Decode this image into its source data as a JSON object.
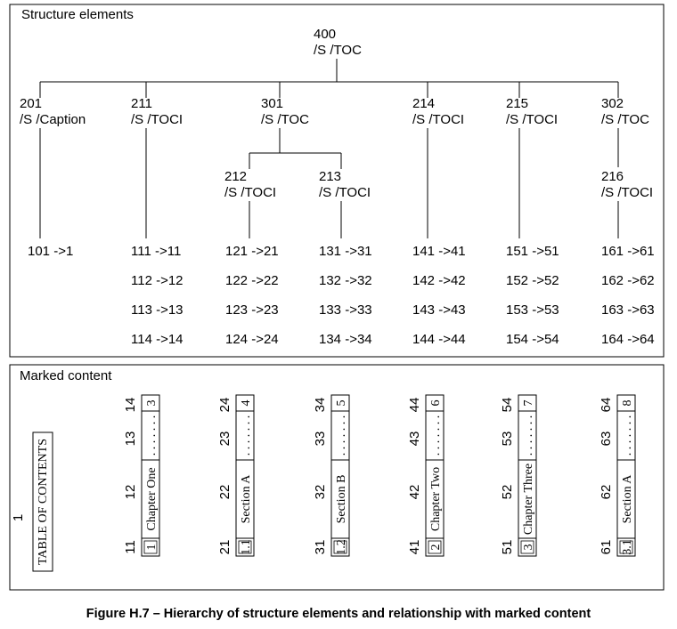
{
  "structure": {
    "title": "Structure elements",
    "nodes": [
      {
        "id": "n400",
        "num": "400",
        "tag": "/S /TOC"
      },
      {
        "id": "n201",
        "num": "201",
        "tag": "/S /Caption"
      },
      {
        "id": "n211",
        "num": "211",
        "tag": "/S /TOCI"
      },
      {
        "id": "n301",
        "num": "301",
        "tag": "/S /TOC"
      },
      {
        "id": "n214",
        "num": "214",
        "tag": "/S /TOCI"
      },
      {
        "id": "n215",
        "num": "215",
        "tag": "/S /TOCI"
      },
      {
        "id": "n302",
        "num": "302",
        "tag": "/S /TOC"
      },
      {
        "id": "n212",
        "num": "212",
        "tag": "/S /TOCI"
      },
      {
        "id": "n213",
        "num": "213",
        "tag": "/S /TOCI"
      },
      {
        "id": "n216",
        "num": "216",
        "tag": "/S /TOCI"
      }
    ],
    "mcid_columns": [
      [
        "101 ->1"
      ],
      [
        "111 ->11",
        "112 ->12",
        "113 ->13",
        "114 ->14"
      ],
      [
        "121 ->21",
        "122 ->22",
        "123 ->23",
        "124 ->24"
      ],
      [
        "131 ->31",
        "132 ->32",
        "133 ->33",
        "134 ->34"
      ],
      [
        "141 ->41",
        "142 ->42",
        "143 ->43",
        "144 ->44"
      ],
      [
        "151 ->51",
        "152 ->52",
        "153 ->53",
        "154 ->54"
      ],
      [
        "161 ->61",
        "162 ->62",
        "163 ->63",
        "164 ->64"
      ]
    ]
  },
  "marked": {
    "title": "Marked content",
    "toc": {
      "num": "1",
      "text": "TABLE OF CONTENTS"
    },
    "columns": [
      {
        "nums": [
          "11",
          "12",
          "13",
          "14"
        ],
        "boxes": [
          "1",
          "Chapter One",
          ". . . . . . .",
          "3"
        ]
      },
      {
        "nums": [
          "21",
          "22",
          "23",
          "24"
        ],
        "boxes": [
          "1.1",
          "Section A",
          ". . . . . . .",
          "4"
        ]
      },
      {
        "nums": [
          "31",
          "32",
          "33",
          "34"
        ],
        "boxes": [
          "1.2",
          "Section B",
          ". . . . . . .",
          "5"
        ]
      },
      {
        "nums": [
          "41",
          "42",
          "43",
          "44"
        ],
        "boxes": [
          "2",
          "Chapter Two",
          ". . . . . . .",
          "6"
        ]
      },
      {
        "nums": [
          "51",
          "52",
          "53",
          "54"
        ],
        "boxes": [
          "3",
          "Chapter Three",
          ". . . . . . .",
          "7"
        ]
      },
      {
        "nums": [
          "61",
          "62",
          "63",
          "64"
        ],
        "boxes": [
          "3.1",
          "Section A",
          ". . . . . . .",
          "8"
        ]
      }
    ]
  },
  "caption": "Figure H.7 –  Hierarchy of structure elements and relationship with marked content"
}
